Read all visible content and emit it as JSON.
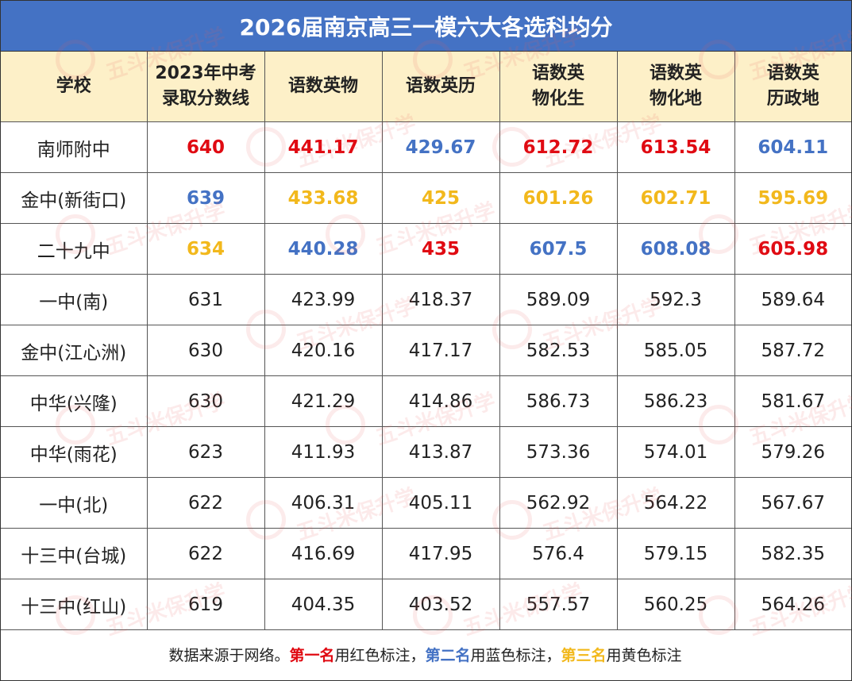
{
  "title": "2026届南京高三一模六大各选科均分",
  "headers": [
    [
      "学校"
    ],
    [
      "2023年中考",
      "录取分数线"
    ],
    [
      "语数英物"
    ],
    [
      "语数英历"
    ],
    [
      "语数英",
      "物化生"
    ],
    [
      "语数英",
      "物化地"
    ],
    [
      "语数英",
      "历政地"
    ]
  ],
  "rows": [
    [
      "南师附中",
      "640",
      "441.17",
      "429.67",
      "612.72",
      "613.54",
      "604.11"
    ],
    [
      "金中(新街口)",
      "639",
      "433.68",
      "425",
      "601.26",
      "602.71",
      "595.69"
    ],
    [
      "二十九中",
      "634",
      "440.28",
      "435",
      "607.5",
      "608.08",
      "605.98"
    ],
    [
      "一中(南)",
      "631",
      "423.99",
      "418.37",
      "589.09",
      "592.3",
      "589.64"
    ],
    [
      "金中(江心洲)",
      "630",
      "420.16",
      "417.17",
      "582.53",
      "585.05",
      "587.72"
    ],
    [
      "中华(兴隆)",
      "630",
      "421.29",
      "414.86",
      "586.73",
      "586.23",
      "581.67"
    ],
    [
      "中华(雨花)",
      "623",
      "411.93",
      "413.87",
      "573.36",
      "574.01",
      "579.26"
    ],
    [
      "一中(北)",
      "622",
      "406.31",
      "405.11",
      "562.92",
      "564.22",
      "567.67"
    ],
    [
      "十三中(台城)",
      "622",
      "416.69",
      "417.95",
      "576.4",
      "579.15",
      "582.35"
    ],
    [
      "十三中(红山)",
      "619",
      "404.35",
      "403.52",
      "557.57",
      "560.25",
      "564.26"
    ]
  ],
  "highlights": [
    [
      "",
      "red",
      "red",
      "blue",
      "red",
      "red",
      "blue"
    ],
    [
      "",
      "blue",
      "yellow",
      "yellow",
      "yellow",
      "yellow",
      "yellow"
    ],
    [
      "",
      "yellow",
      "blue",
      "red",
      "blue",
      "blue",
      "red"
    ]
  ],
  "colors": {
    "header_bg": "#4472c4",
    "column_header_bg": "#fdf0c8",
    "first": "#e00a12",
    "second": "#4472c4",
    "third": "#f2b81c"
  },
  "footer": {
    "part1": "数据来源于网络。",
    "first_label": "第一名",
    "part2": "用红色标注，",
    "second_label": "第二名",
    "part3": "用蓝色标注，",
    "third_label": "第三名",
    "part4": "用黄色标注"
  },
  "watermark": "五斗米保升学"
}
